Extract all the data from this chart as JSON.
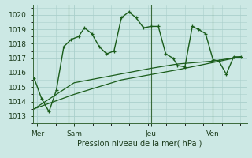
{
  "bg_color": "#cce8e4",
  "grid_color": "#aacfcb",
  "line_color": "#1a5c1a",
  "xlabel": "Pression niveau de la mer( hPa )",
  "ylim": [
    1012.5,
    1020.7
  ],
  "yticks": [
    1013,
    1014,
    1015,
    1016,
    1017,
    1018,
    1019,
    1020
  ],
  "xlim": [
    0,
    14.5
  ],
  "day_labels": [
    "Mer",
    "Sam",
    "Jeu",
    "Ven"
  ],
  "day_positions": [
    0.3,
    2.8,
    8.0,
    12.2
  ],
  "vline_positions": [
    2.4,
    8.0,
    12.2
  ],
  "series1_x": [
    0.1,
    0.6,
    1.1,
    1.6,
    2.1,
    2.6,
    3.1,
    3.5,
    4.0,
    4.5,
    5.0,
    5.5,
    6.0,
    6.5,
    7.0,
    7.5,
    8.0,
    8.5,
    9.0,
    9.5,
    9.8,
    10.3,
    10.8,
    11.2,
    11.7,
    12.2,
    12.6,
    13.1,
    13.6,
    14.1
  ],
  "series1_y": [
    1015.6,
    1014.2,
    1013.3,
    1014.8,
    1017.8,
    1018.3,
    1018.5,
    1019.1,
    1018.7,
    1017.8,
    1017.3,
    1017.5,
    1019.8,
    1020.2,
    1019.8,
    1019.1,
    1019.2,
    1019.2,
    1017.3,
    1017.0,
    1016.5,
    1016.4,
    1019.2,
    1019.0,
    1018.7,
    1016.9,
    1016.8,
    1015.9,
    1017.1,
    1017.1
  ],
  "series2_x": [
    0.1,
    2.8,
    8.0,
    9.8,
    12.2,
    14.1
  ],
  "series2_y": [
    1013.5,
    1015.3,
    1016.3,
    1016.6,
    1016.8,
    1017.1
  ],
  "series3_x": [
    0.1,
    2.8,
    6.0,
    9.8,
    12.2,
    14.1
  ],
  "series3_y": [
    1013.5,
    1014.5,
    1015.5,
    1016.2,
    1016.7,
    1017.1
  ]
}
